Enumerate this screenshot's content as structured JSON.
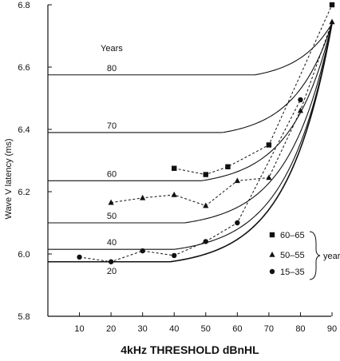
{
  "chart_data": {
    "type": "line",
    "xlabel": "4kHz THRESHOLD dBnHL",
    "ylabel": "Wave V latency (ms)",
    "xlim": [
      0,
      90
    ],
    "ylim": [
      5.8,
      6.8
    ],
    "x_ticks": [
      "10",
      "20",
      "30",
      "40",
      "50",
      "60",
      "70",
      "80",
      "90"
    ],
    "y_ticks": [
      "5.8",
      "6.0",
      "6.2",
      "6.4",
      "6.6",
      "6.8"
    ],
    "curves_header": "Years",
    "age_curves": [
      {
        "label": "80",
        "baseline": 6.575
      },
      {
        "label": "70",
        "baseline": 6.39
      },
      {
        "label": "60",
        "baseline": 6.235
      },
      {
        "label": "50",
        "baseline": 6.1
      },
      {
        "label": "40",
        "baseline": 6.015
      },
      {
        "label": "20",
        "baseline": 5.975
      }
    ],
    "curves_converge_to": {
      "x": 90,
      "y": 6.74
    },
    "series": [
      {
        "name": "60–65",
        "marker": "square",
        "x": [
          40,
          50,
          57,
          70,
          90
        ],
        "y": [
          6.275,
          6.255,
          6.28,
          6.35,
          6.8
        ]
      },
      {
        "name": "50–55",
        "marker": "triangle",
        "x": [
          20,
          30,
          40,
          50,
          60,
          70,
          80,
          90
        ],
        "y": [
          6.165,
          6.18,
          6.19,
          6.155,
          6.235,
          6.245,
          6.46,
          6.745
        ]
      },
      {
        "name": "15–35",
        "marker": "circle",
        "x": [
          10,
          20,
          30,
          40,
          50,
          60,
          80
        ],
        "y": [
          5.99,
          5.975,
          6.01,
          5.995,
          6.04,
          6.1,
          6.495
        ]
      }
    ],
    "legend_group_label": "years",
    "legend_position": "bottom-right",
    "grid": false
  }
}
